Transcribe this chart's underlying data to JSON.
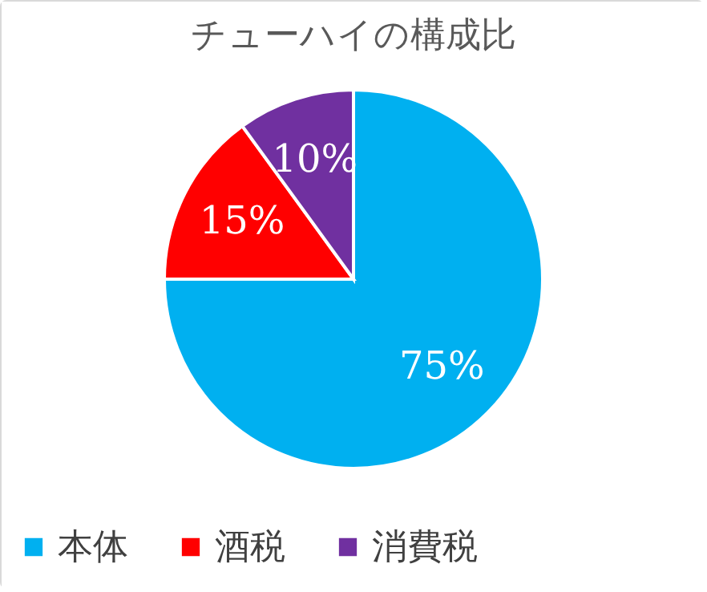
{
  "chart_data": {
    "type": "pie",
    "title": "チューハイの構成比",
    "categories": [
      "本体",
      "酒税",
      "消費税"
    ],
    "values": [
      75,
      15,
      10
    ],
    "colors": [
      "#00b0f0",
      "#ff0000",
      "#7030a0"
    ],
    "value_labels": [
      "75%",
      "15%",
      "10%"
    ],
    "legend": "bottom"
  }
}
